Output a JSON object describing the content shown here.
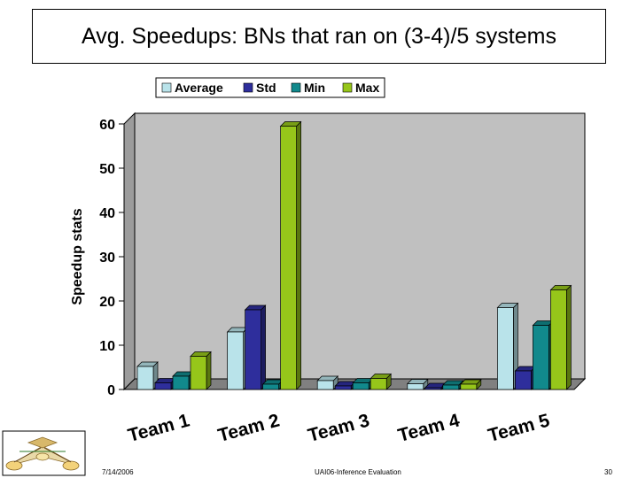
{
  "slide": {
    "title": "Avg. Speedups: BNs that ran on (3-4)/5 systems",
    "footer_date": "7/14/2006",
    "footer_center": "UAI06-Inference Evaluation",
    "page_number": "30"
  },
  "colors": {
    "Average": "#b9e3ea",
    "Std": "#2e2e9c",
    "Min": "#11898c",
    "Max": "#96c61a",
    "plot_back": "#c0c0c0",
    "plot_left_wall": "#9c9c9c"
  },
  "chart_data": {
    "type": "bar",
    "categories": [
      "Team 1",
      "Team 2",
      "Team 3",
      "Team 4",
      "Team 5"
    ],
    "series": [
      {
        "name": "Average",
        "values": [
          5.2,
          13.0,
          2.0,
          1.3,
          18.5
        ]
      },
      {
        "name": "Std",
        "values": [
          1.5,
          18.0,
          0.8,
          0.4,
          4.2
        ]
      },
      {
        "name": "Min",
        "values": [
          3.0,
          1.2,
          1.5,
          1.0,
          14.5
        ]
      },
      {
        "name": "Max",
        "values": [
          7.5,
          59.5,
          2.5,
          1.2,
          22.5
        ]
      }
    ],
    "ylabel": "Speedup stats",
    "xlabel": "",
    "ylim": [
      0,
      60
    ],
    "yticks": [
      0,
      10,
      20,
      30,
      40,
      50,
      60
    ],
    "legend_position": "top",
    "grid": false,
    "style": "3d-clustered-column"
  }
}
